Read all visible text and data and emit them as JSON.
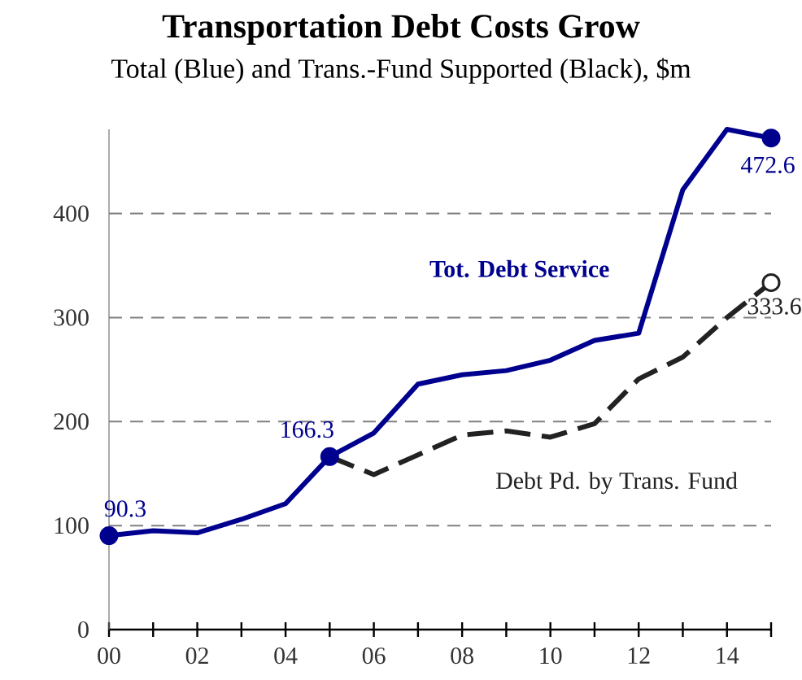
{
  "chart_data": {
    "type": "line",
    "title": "Transportation Debt Costs Grow",
    "subtitle": "Total (Blue) and Trans.-Fund Supported (Black), $m",
    "series": [
      {
        "name": "Tot. Debt Service",
        "color": "#00008f",
        "line_style": "solid",
        "x": [
          2000,
          2001,
          2002,
          2003,
          2004,
          2005,
          2006,
          2007,
          2008,
          2009,
          2010,
          2011,
          2012,
          2013,
          2014,
          2015
        ],
        "values": [
          90.3,
          95,
          93,
          106,
          121,
          166.3,
          189,
          236,
          245,
          249,
          259,
          278,
          285,
          423,
          481,
          472.6
        ]
      },
      {
        "name": "Debt Pd. by Trans. Fund",
        "color": "#222222",
        "line_style": "dashed",
        "x": [
          2005,
          2006,
          2007,
          2008,
          2009,
          2010,
          2011,
          2012,
          2013,
          2014,
          2015
        ],
        "values": [
          166.3,
          149,
          168,
          187,
          191,
          185,
          198,
          241,
          262,
          300,
          333.6
        ]
      },
      {
        "type": "scatter",
        "color": "#00008f",
        "x": [
          2000,
          2005,
          2015
        ],
        "values": [
          90.3,
          166.3,
          472.6
        ],
        "value_labels": [
          "90.3",
          "166.3",
          "472.6"
        ]
      },
      {
        "type": "scatter",
        "color": "#222222",
        "x": [
          2015
        ],
        "values": [
          333.6
        ],
        "value_labels": [
          "333.6"
        ]
      }
    ],
    "xlim": [
      2000,
      2015
    ],
    "ylim": [
      0,
      481
    ],
    "xticks": [
      {
        "value": 2000,
        "label": "00"
      },
      {
        "value": 2001,
        "label": null
      },
      {
        "value": 2002,
        "label": "02"
      },
      {
        "value": 2003,
        "label": null
      },
      {
        "value": 2004,
        "label": "04"
      },
      {
        "value": 2005,
        "label": null
      },
      {
        "value": 2006,
        "label": "06"
      },
      {
        "value": 2007,
        "label": null
      },
      {
        "value": 2008,
        "label": "08"
      },
      {
        "value": 2009,
        "label": null
      },
      {
        "value": 2010,
        "label": "10"
      },
      {
        "value": 2011,
        "label": null
      },
      {
        "value": 2012,
        "label": "12"
      },
      {
        "value": 2013,
        "label": null
      },
      {
        "value": 2014,
        "label": "14"
      },
      {
        "value": 2015,
        "label": null
      }
    ],
    "yticks": [
      0,
      100,
      200,
      300,
      400
    ],
    "grid": "y"
  }
}
